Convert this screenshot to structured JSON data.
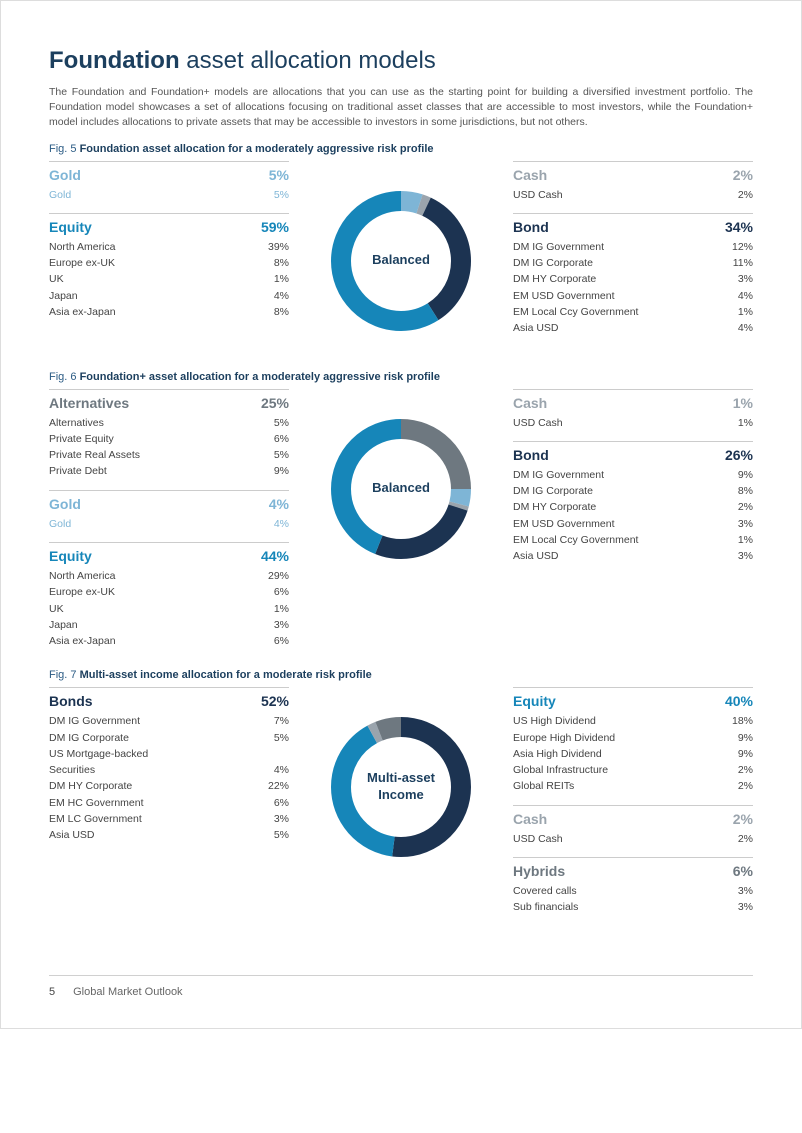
{
  "page": {
    "title_bold": "Foundation",
    "title_rest": " asset allocation models",
    "intro": "The Foundation and Foundation+ models are allocations that you can use as the starting point for building a diversified investment portfolio. The Foundation model showcases a set of allocations focusing on traditional asset classes that are accessible to most investors, while the Foundation+ model includes allocations to private assets that may be accessible to investors in some jurisdictions, but not others.",
    "footer_page": "5",
    "footer_text": "Global Market Outlook"
  },
  "colors": {
    "equity": "#1686b9",
    "gold": "#7eb5d6",
    "cash": "#9aa4ad",
    "alternatives": "#6e7880",
    "bond": "#1c3351",
    "hybrids": "#6e7880",
    "dark_text": "#1c3351",
    "grey_text": "#777"
  },
  "figures": [
    {
      "id": "fig5",
      "fig_num": "Fig. 5",
      "fig_title": "Foundation asset allocation for a moderately aggressive risk profile",
      "center_label": "Balanced",
      "left": [
        {
          "name": "Gold",
          "color": "gold",
          "pct": "5%",
          "rows": [
            {
              "l": "Gold",
              "v": "5%"
            }
          ]
        },
        {
          "name": "Equity",
          "color": "equity",
          "pct": "59%",
          "rows": [
            {
              "l": "North America",
              "v": "39%"
            },
            {
              "l": "Europe ex-UK",
              "v": "8%"
            },
            {
              "l": "UK",
              "v": "1%"
            },
            {
              "l": "Japan",
              "v": "4%"
            },
            {
              "l": "Asia ex-Japan",
              "v": "8%"
            }
          ]
        }
      ],
      "right": [
        {
          "name": "Cash",
          "color": "cash",
          "pct": "2%",
          "rows": [
            {
              "l": "USD Cash",
              "v": "2%"
            }
          ]
        },
        {
          "name": "Bond",
          "color": "bond",
          "pct": "34%",
          "rows": [
            {
              "l": "DM IG Government",
              "v": "12%"
            },
            {
              "l": "DM IG Corporate",
              "v": "11%"
            },
            {
              "l": "DM HY Corporate",
              "v": "3%"
            },
            {
              "l": "EM USD Government",
              "v": "4%"
            },
            {
              "l": "EM Local Ccy Government",
              "v": "1%"
            },
            {
              "l": "Asia USD",
              "v": "4%"
            }
          ]
        }
      ],
      "donut": [
        {
          "color": "gold",
          "value": 5
        },
        {
          "color": "cash",
          "value": 2
        },
        {
          "color": "bond",
          "value": 34
        },
        {
          "color": "equity",
          "value": 59
        }
      ]
    },
    {
      "id": "fig6",
      "fig_num": "Fig. 6",
      "fig_title": "Foundation+ asset allocation for a moderately aggressive risk profile",
      "center_label": "Balanced",
      "left": [
        {
          "name": "Alternatives",
          "color": "alternatives",
          "pct": "25%",
          "rows": [
            {
              "l": "Alternatives",
              "v": "5%"
            },
            {
              "l": "Private Equity",
              "v": "6%"
            },
            {
              "l": "Private Real Assets",
              "v": "5%"
            },
            {
              "l": "Private Debt",
              "v": "9%"
            }
          ]
        },
        {
          "name": "Gold",
          "color": "gold",
          "pct": "4%",
          "rows": [
            {
              "l": "Gold",
              "v": "4%"
            }
          ]
        },
        {
          "name": "Equity",
          "color": "equity",
          "pct": "44%",
          "rows": [
            {
              "l": "North America",
              "v": "29%"
            },
            {
              "l": "Europe ex-UK",
              "v": "6%"
            },
            {
              "l": "UK",
              "v": "1%"
            },
            {
              "l": "Japan",
              "v": "3%"
            },
            {
              "l": "Asia ex-Japan",
              "v": "6%"
            }
          ]
        }
      ],
      "right": [
        {
          "name": "Cash",
          "color": "cash",
          "pct": "1%",
          "rows": [
            {
              "l": "USD Cash",
              "v": "1%"
            }
          ]
        },
        {
          "name": "Bond",
          "color": "bond",
          "pct": "26%",
          "rows": [
            {
              "l": "DM IG Government",
              "v": "9%"
            },
            {
              "l": "DM IG Corporate",
              "v": "8%"
            },
            {
              "l": "DM HY Corporate",
              "v": "2%"
            },
            {
              "l": "EM USD Government",
              "v": "3%"
            },
            {
              "l": "EM Local Ccy Government",
              "v": "1%"
            },
            {
              "l": "Asia USD",
              "v": "3%"
            }
          ]
        }
      ],
      "donut": [
        {
          "color": "alternatives",
          "value": 25
        },
        {
          "color": "gold",
          "value": 4
        },
        {
          "color": "cash",
          "value": 1
        },
        {
          "color": "bond",
          "value": 26
        },
        {
          "color": "equity",
          "value": 44
        }
      ]
    },
    {
      "id": "fig7",
      "fig_num": "Fig. 7",
      "fig_title": "Multi-asset income allocation for a moderate risk profile",
      "center_label": "Multi-asset\nIncome",
      "left": [
        {
          "name": "Bonds",
          "color": "bond",
          "pct": "52%",
          "rows": [
            {
              "l": "DM IG Government",
              "v": "7%"
            },
            {
              "l": "DM IG Corporate",
              "v": "5%"
            },
            {
              "l": "US Mortgage-backed",
              "v": ""
            },
            {
              "l": "Securities",
              "v": "4%"
            },
            {
              "l": "DM HY Corporate",
              "v": "22%"
            },
            {
              "l": "EM HC Government",
              "v": "6%"
            },
            {
              "l": "EM LC Government",
              "v": "3%"
            },
            {
              "l": "Asia USD",
              "v": "5%"
            }
          ]
        }
      ],
      "right": [
        {
          "name": "Equity",
          "color": "equity",
          "pct": "40%",
          "rows": [
            {
              "l": "US High Dividend",
              "v": "18%"
            },
            {
              "l": "Europe High Dividend",
              "v": "9%"
            },
            {
              "l": "Asia High Dividend",
              "v": "9%"
            },
            {
              "l": "Global Infrastructure",
              "v": "2%"
            },
            {
              "l": "Global REITs",
              "v": "2%"
            }
          ]
        },
        {
          "name": "Cash",
          "color": "cash",
          "pct": "2%",
          "rows": [
            {
              "l": "USD Cash",
              "v": "2%"
            }
          ]
        },
        {
          "name": "Hybrids",
          "color": "hybrids",
          "pct": "6%",
          "rows": [
            {
              "l": "Covered calls",
              "v": "3%"
            },
            {
              "l": "Sub financials",
              "v": "3%"
            }
          ]
        }
      ],
      "donut": [
        {
          "color": "bond",
          "value": 52
        },
        {
          "color": "equity",
          "value": 40
        },
        {
          "color": "cash",
          "value": 2
        },
        {
          "color": "hybrids",
          "value": 6
        }
      ]
    }
  ]
}
